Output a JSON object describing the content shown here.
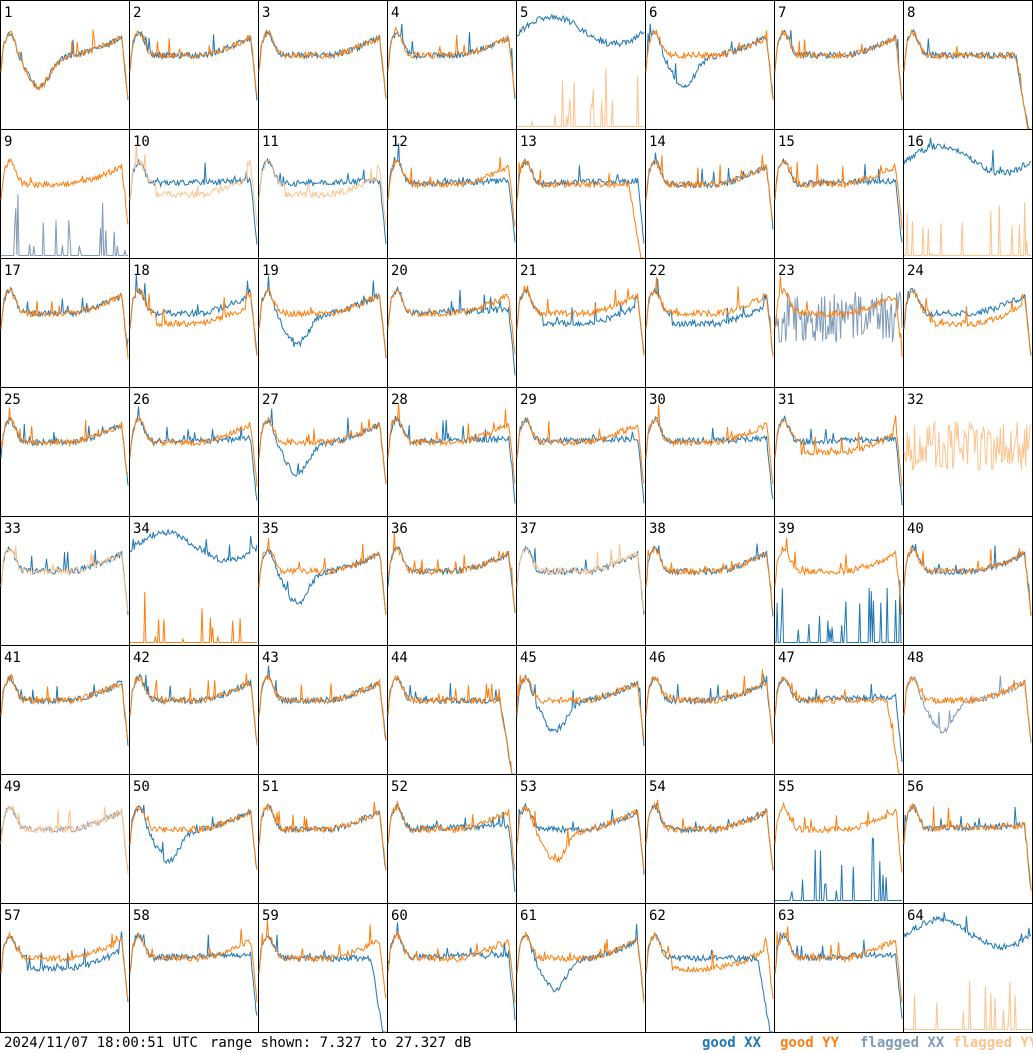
{
  "chart_data": {
    "type": "line",
    "layout": "8x8 small multiples",
    "panel_labels": [
      "1",
      "2",
      "3",
      "4",
      "5",
      "6",
      "7",
      "8",
      "9",
      "10",
      "11",
      "12",
      "13",
      "14",
      "15",
      "16",
      "17",
      "18",
      "19",
      "20",
      "21",
      "22",
      "23",
      "24",
      "25",
      "26",
      "27",
      "28",
      "29",
      "30",
      "31",
      "32",
      "33",
      "34",
      "35",
      "36",
      "37",
      "38",
      "39",
      "40",
      "41",
      "42",
      "43",
      "44",
      "45",
      "46",
      "47",
      "48",
      "49",
      "50",
      "51",
      "52",
      "53",
      "54",
      "55",
      "56",
      "57",
      "58",
      "59",
      "60",
      "61",
      "62",
      "63",
      "64"
    ],
    "ylim": [
      7.327,
      27.327
    ],
    "series_styles": {
      "good_xx": {
        "color": "#1f77b4"
      },
      "good_yy": {
        "color": "#ff7f0e"
      },
      "flagged_xx": {
        "color": "#7f9bb8"
      },
      "flagged_yy": {
        "color": "#ffc38c"
      }
    },
    "panels": [
      {
        "xx": "dip",
        "yy": "dip",
        "xs": "good",
        "ys": "good"
      },
      {
        "xx": "normal",
        "yy": "normal",
        "xs": "good",
        "ys": "good"
      },
      {
        "xx": "normal",
        "yy": "normal",
        "xs": "good",
        "ys": "good"
      },
      {
        "xx": "normal",
        "yy": "normal",
        "xs": "good",
        "ys": "good"
      },
      {
        "xx": "high",
        "yy": "spiky_low",
        "xs": "good",
        "ys": "flagged"
      },
      {
        "xx": "dip",
        "yy": "normal",
        "xs": "good",
        "ys": "good"
      },
      {
        "xx": "normal",
        "yy": "normal",
        "xs": "good",
        "ys": "good"
      },
      {
        "xx": "flat_drop",
        "yy": "flat_drop",
        "xs": "good",
        "ys": "good"
      },
      {
        "xx": "spiky_low",
        "yy": "normal",
        "xs": "flagged",
        "ys": "good"
      },
      {
        "xx": "flat",
        "yy": "low",
        "xs": "good",
        "ys": "flagged"
      },
      {
        "xx": "flat",
        "yy": "low",
        "xs": "good",
        "ys": "flagged"
      },
      {
        "xx": "flat",
        "yy": "normal",
        "xs": "good",
        "ys": "good"
      },
      {
        "xx": "flat",
        "yy": "flat_drop",
        "xs": "good",
        "ys": "good"
      },
      {
        "xx": "normal",
        "yy": "normal",
        "xs": "good",
        "ys": "good"
      },
      {
        "xx": "flat",
        "yy": "normal",
        "xs": "good",
        "ys": "good"
      },
      {
        "xx": "high",
        "yy": "spiky_low",
        "xs": "good",
        "ys": "flagged"
      },
      {
        "xx": "normal",
        "yy": "normal",
        "xs": "good",
        "ys": "good"
      },
      {
        "xx": "normal",
        "yy": "low",
        "xs": "good",
        "ys": "good"
      },
      {
        "xx": "dip",
        "yy": "normal",
        "xs": "good",
        "ys": "good"
      },
      {
        "xx": "flat",
        "yy": "normal",
        "xs": "good",
        "ys": "good"
      },
      {
        "xx": "low",
        "yy": "normal",
        "xs": "good",
        "ys": "good"
      },
      {
        "xx": "low",
        "yy": "normal",
        "xs": "good",
        "ys": "good"
      },
      {
        "xx": "noisy",
        "yy": "normal",
        "xs": "flagged",
        "ys": "good"
      },
      {
        "xx": "normal",
        "yy": "low",
        "xs": "good",
        "ys": "good"
      },
      {
        "xx": "normal",
        "yy": "normal",
        "xs": "good",
        "ys": "good"
      },
      {
        "xx": "flat",
        "yy": "normal",
        "xs": "good",
        "ys": "good"
      },
      {
        "xx": "dip",
        "yy": "normal",
        "xs": "good",
        "ys": "good"
      },
      {
        "xx": "flat",
        "yy": "normal",
        "xs": "good",
        "ys": "good"
      },
      {
        "xx": "flat",
        "yy": "normal",
        "xs": "good",
        "ys": "good"
      },
      {
        "xx": "flat",
        "yy": "normal",
        "xs": "good",
        "ys": "good"
      },
      {
        "xx": "flat",
        "yy": "low",
        "xs": "good",
        "ys": "good"
      },
      {
        "xx": "none",
        "yy": "noisy",
        "xs": "flagged",
        "ys": "flagged"
      },
      {
        "xx": "normal",
        "yy": "normal",
        "xs": "good",
        "ys": "flagged"
      },
      {
        "xx": "high",
        "yy": "spiky_low",
        "xs": "good",
        "ys": "good"
      },
      {
        "xx": "dip",
        "yy": "normal",
        "xs": "good",
        "ys": "good"
      },
      {
        "xx": "normal",
        "yy": "normal",
        "xs": "good",
        "ys": "good"
      },
      {
        "xx": "normal",
        "yy": "normal",
        "xs": "good",
        "ys": "flagged"
      },
      {
        "xx": "normal",
        "yy": "normal",
        "xs": "good",
        "ys": "good"
      },
      {
        "xx": "spiky_low",
        "yy": "normal",
        "xs": "good",
        "ys": "good"
      },
      {
        "xx": "normal",
        "yy": "normal",
        "xs": "good",
        "ys": "good"
      },
      {
        "xx": "normal",
        "yy": "normal",
        "xs": "good",
        "ys": "good"
      },
      {
        "xx": "normal",
        "yy": "normal",
        "xs": "good",
        "ys": "good"
      },
      {
        "xx": "normal",
        "yy": "normal",
        "xs": "good",
        "ys": "good"
      },
      {
        "xx": "flat_drop",
        "yy": "flat_drop",
        "xs": "good",
        "ys": "good"
      },
      {
        "xx": "dip",
        "yy": "normal",
        "xs": "good",
        "ys": "good"
      },
      {
        "xx": "normal",
        "yy": "normal",
        "xs": "good",
        "ys": "good"
      },
      {
        "xx": "flat",
        "yy": "flat_drop",
        "xs": "good",
        "ys": "good"
      },
      {
        "xx": "dip",
        "yy": "normal",
        "xs": "flagged",
        "ys": "good"
      },
      {
        "xx": "normal",
        "yy": "normal",
        "xs": "flagged",
        "ys": "flagged"
      },
      {
        "xx": "dip",
        "yy": "normal",
        "xs": "good",
        "ys": "good"
      },
      {
        "xx": "normal",
        "yy": "normal",
        "xs": "good",
        "ys": "good"
      },
      {
        "xx": "flat",
        "yy": "normal",
        "xs": "good",
        "ys": "good"
      },
      {
        "xx": "normal",
        "yy": "dip",
        "xs": "good",
        "ys": "good"
      },
      {
        "xx": "normal",
        "yy": "normal",
        "xs": "good",
        "ys": "good"
      },
      {
        "xx": "spiky_low",
        "yy": "normal",
        "xs": "good",
        "ys": "good"
      },
      {
        "xx": "flat",
        "yy": "flat",
        "xs": "good",
        "ys": "good"
      },
      {
        "xx": "low",
        "yy": "normal",
        "xs": "good",
        "ys": "good"
      },
      {
        "xx": "flat",
        "yy": "normal",
        "xs": "good",
        "ys": "good"
      },
      {
        "xx": "flat_drop",
        "yy": "normal",
        "xs": "good",
        "ys": "good"
      },
      {
        "xx": "flat",
        "yy": "normal",
        "xs": "good",
        "ys": "good"
      },
      {
        "xx": "dip",
        "yy": "normal",
        "xs": "good",
        "ys": "good"
      },
      {
        "xx": "flat_drop",
        "yy": "low",
        "xs": "good",
        "ys": "good"
      },
      {
        "xx": "flat",
        "yy": "normal",
        "xs": "good",
        "ys": "good"
      },
      {
        "xx": "high",
        "yy": "spiky_low",
        "xs": "good",
        "ys": "flagged"
      }
    ]
  },
  "footer": {
    "timestamp": "2024/11/07 18:00:51 UTC",
    "range": "range shown: 7.327 to 27.327 dB",
    "legend": [
      {
        "text": "good XX",
        "color": "#1f77b4"
      },
      {
        "text": "good YY",
        "color": "#ff7f0e"
      },
      {
        "text": "flagged XX",
        "color": "#7f9bb8"
      },
      {
        "text": "flagged YY",
        "color": "#ffc38c"
      }
    ]
  }
}
